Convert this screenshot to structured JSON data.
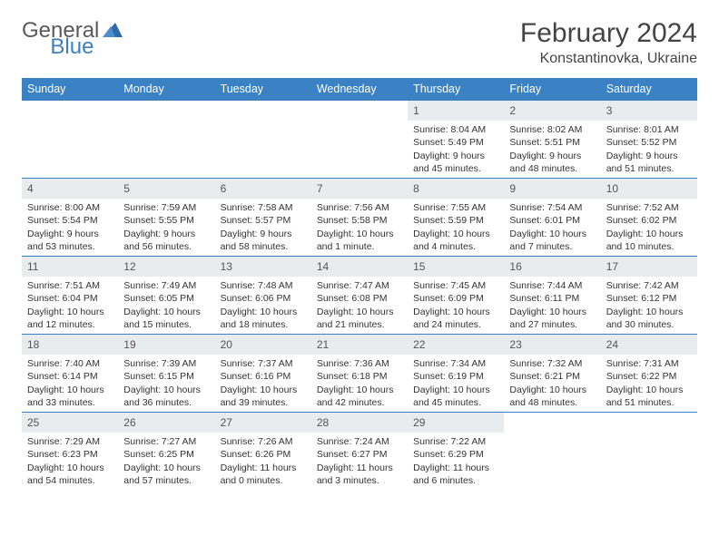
{
  "brand": {
    "name1": "General",
    "name2": "Blue"
  },
  "title": "February 2024",
  "location": "Konstantinovka, Ukraine",
  "colors": {
    "header_bg": "#3b82c4",
    "header_text": "#ffffff",
    "daynum_bg": "#e9ecef",
    "border": "#3b82c4",
    "text": "#333333",
    "brand_gray": "#5a5a5a",
    "brand_blue": "#3b7fc4"
  },
  "weekdays": [
    "Sunday",
    "Monday",
    "Tuesday",
    "Wednesday",
    "Thursday",
    "Friday",
    "Saturday"
  ],
  "weeks": [
    [
      {
        "blank": true
      },
      {
        "blank": true
      },
      {
        "blank": true
      },
      {
        "blank": true
      },
      {
        "day": "1",
        "sunrise": "Sunrise: 8:04 AM",
        "sunset": "Sunset: 5:49 PM",
        "dl1": "Daylight: 9 hours",
        "dl2": "and 45 minutes."
      },
      {
        "day": "2",
        "sunrise": "Sunrise: 8:02 AM",
        "sunset": "Sunset: 5:51 PM",
        "dl1": "Daylight: 9 hours",
        "dl2": "and 48 minutes."
      },
      {
        "day": "3",
        "sunrise": "Sunrise: 8:01 AM",
        "sunset": "Sunset: 5:52 PM",
        "dl1": "Daylight: 9 hours",
        "dl2": "and 51 minutes."
      }
    ],
    [
      {
        "day": "4",
        "sunrise": "Sunrise: 8:00 AM",
        "sunset": "Sunset: 5:54 PM",
        "dl1": "Daylight: 9 hours",
        "dl2": "and 53 minutes."
      },
      {
        "day": "5",
        "sunrise": "Sunrise: 7:59 AM",
        "sunset": "Sunset: 5:55 PM",
        "dl1": "Daylight: 9 hours",
        "dl2": "and 56 minutes."
      },
      {
        "day": "6",
        "sunrise": "Sunrise: 7:58 AM",
        "sunset": "Sunset: 5:57 PM",
        "dl1": "Daylight: 9 hours",
        "dl2": "and 58 minutes."
      },
      {
        "day": "7",
        "sunrise": "Sunrise: 7:56 AM",
        "sunset": "Sunset: 5:58 PM",
        "dl1": "Daylight: 10 hours",
        "dl2": "and 1 minute."
      },
      {
        "day": "8",
        "sunrise": "Sunrise: 7:55 AM",
        "sunset": "Sunset: 5:59 PM",
        "dl1": "Daylight: 10 hours",
        "dl2": "and 4 minutes."
      },
      {
        "day": "9",
        "sunrise": "Sunrise: 7:54 AM",
        "sunset": "Sunset: 6:01 PM",
        "dl1": "Daylight: 10 hours",
        "dl2": "and 7 minutes."
      },
      {
        "day": "10",
        "sunrise": "Sunrise: 7:52 AM",
        "sunset": "Sunset: 6:02 PM",
        "dl1": "Daylight: 10 hours",
        "dl2": "and 10 minutes."
      }
    ],
    [
      {
        "day": "11",
        "sunrise": "Sunrise: 7:51 AM",
        "sunset": "Sunset: 6:04 PM",
        "dl1": "Daylight: 10 hours",
        "dl2": "and 12 minutes."
      },
      {
        "day": "12",
        "sunrise": "Sunrise: 7:49 AM",
        "sunset": "Sunset: 6:05 PM",
        "dl1": "Daylight: 10 hours",
        "dl2": "and 15 minutes."
      },
      {
        "day": "13",
        "sunrise": "Sunrise: 7:48 AM",
        "sunset": "Sunset: 6:06 PM",
        "dl1": "Daylight: 10 hours",
        "dl2": "and 18 minutes."
      },
      {
        "day": "14",
        "sunrise": "Sunrise: 7:47 AM",
        "sunset": "Sunset: 6:08 PM",
        "dl1": "Daylight: 10 hours",
        "dl2": "and 21 minutes."
      },
      {
        "day": "15",
        "sunrise": "Sunrise: 7:45 AM",
        "sunset": "Sunset: 6:09 PM",
        "dl1": "Daylight: 10 hours",
        "dl2": "and 24 minutes."
      },
      {
        "day": "16",
        "sunrise": "Sunrise: 7:44 AM",
        "sunset": "Sunset: 6:11 PM",
        "dl1": "Daylight: 10 hours",
        "dl2": "and 27 minutes."
      },
      {
        "day": "17",
        "sunrise": "Sunrise: 7:42 AM",
        "sunset": "Sunset: 6:12 PM",
        "dl1": "Daylight: 10 hours",
        "dl2": "and 30 minutes."
      }
    ],
    [
      {
        "day": "18",
        "sunrise": "Sunrise: 7:40 AM",
        "sunset": "Sunset: 6:14 PM",
        "dl1": "Daylight: 10 hours",
        "dl2": "and 33 minutes."
      },
      {
        "day": "19",
        "sunrise": "Sunrise: 7:39 AM",
        "sunset": "Sunset: 6:15 PM",
        "dl1": "Daylight: 10 hours",
        "dl2": "and 36 minutes."
      },
      {
        "day": "20",
        "sunrise": "Sunrise: 7:37 AM",
        "sunset": "Sunset: 6:16 PM",
        "dl1": "Daylight: 10 hours",
        "dl2": "and 39 minutes."
      },
      {
        "day": "21",
        "sunrise": "Sunrise: 7:36 AM",
        "sunset": "Sunset: 6:18 PM",
        "dl1": "Daylight: 10 hours",
        "dl2": "and 42 minutes."
      },
      {
        "day": "22",
        "sunrise": "Sunrise: 7:34 AM",
        "sunset": "Sunset: 6:19 PM",
        "dl1": "Daylight: 10 hours",
        "dl2": "and 45 minutes."
      },
      {
        "day": "23",
        "sunrise": "Sunrise: 7:32 AM",
        "sunset": "Sunset: 6:21 PM",
        "dl1": "Daylight: 10 hours",
        "dl2": "and 48 minutes."
      },
      {
        "day": "24",
        "sunrise": "Sunrise: 7:31 AM",
        "sunset": "Sunset: 6:22 PM",
        "dl1": "Daylight: 10 hours",
        "dl2": "and 51 minutes."
      }
    ],
    [
      {
        "day": "25",
        "sunrise": "Sunrise: 7:29 AM",
        "sunset": "Sunset: 6:23 PM",
        "dl1": "Daylight: 10 hours",
        "dl2": "and 54 minutes."
      },
      {
        "day": "26",
        "sunrise": "Sunrise: 7:27 AM",
        "sunset": "Sunset: 6:25 PM",
        "dl1": "Daylight: 10 hours",
        "dl2": "and 57 minutes."
      },
      {
        "day": "27",
        "sunrise": "Sunrise: 7:26 AM",
        "sunset": "Sunset: 6:26 PM",
        "dl1": "Daylight: 11 hours",
        "dl2": "and 0 minutes."
      },
      {
        "day": "28",
        "sunrise": "Sunrise: 7:24 AM",
        "sunset": "Sunset: 6:27 PM",
        "dl1": "Daylight: 11 hours",
        "dl2": "and 3 minutes."
      },
      {
        "day": "29",
        "sunrise": "Sunrise: 7:22 AM",
        "sunset": "Sunset: 6:29 PM",
        "dl1": "Daylight: 11 hours",
        "dl2": "and 6 minutes."
      },
      {
        "blank": true
      },
      {
        "blank": true
      }
    ]
  ]
}
